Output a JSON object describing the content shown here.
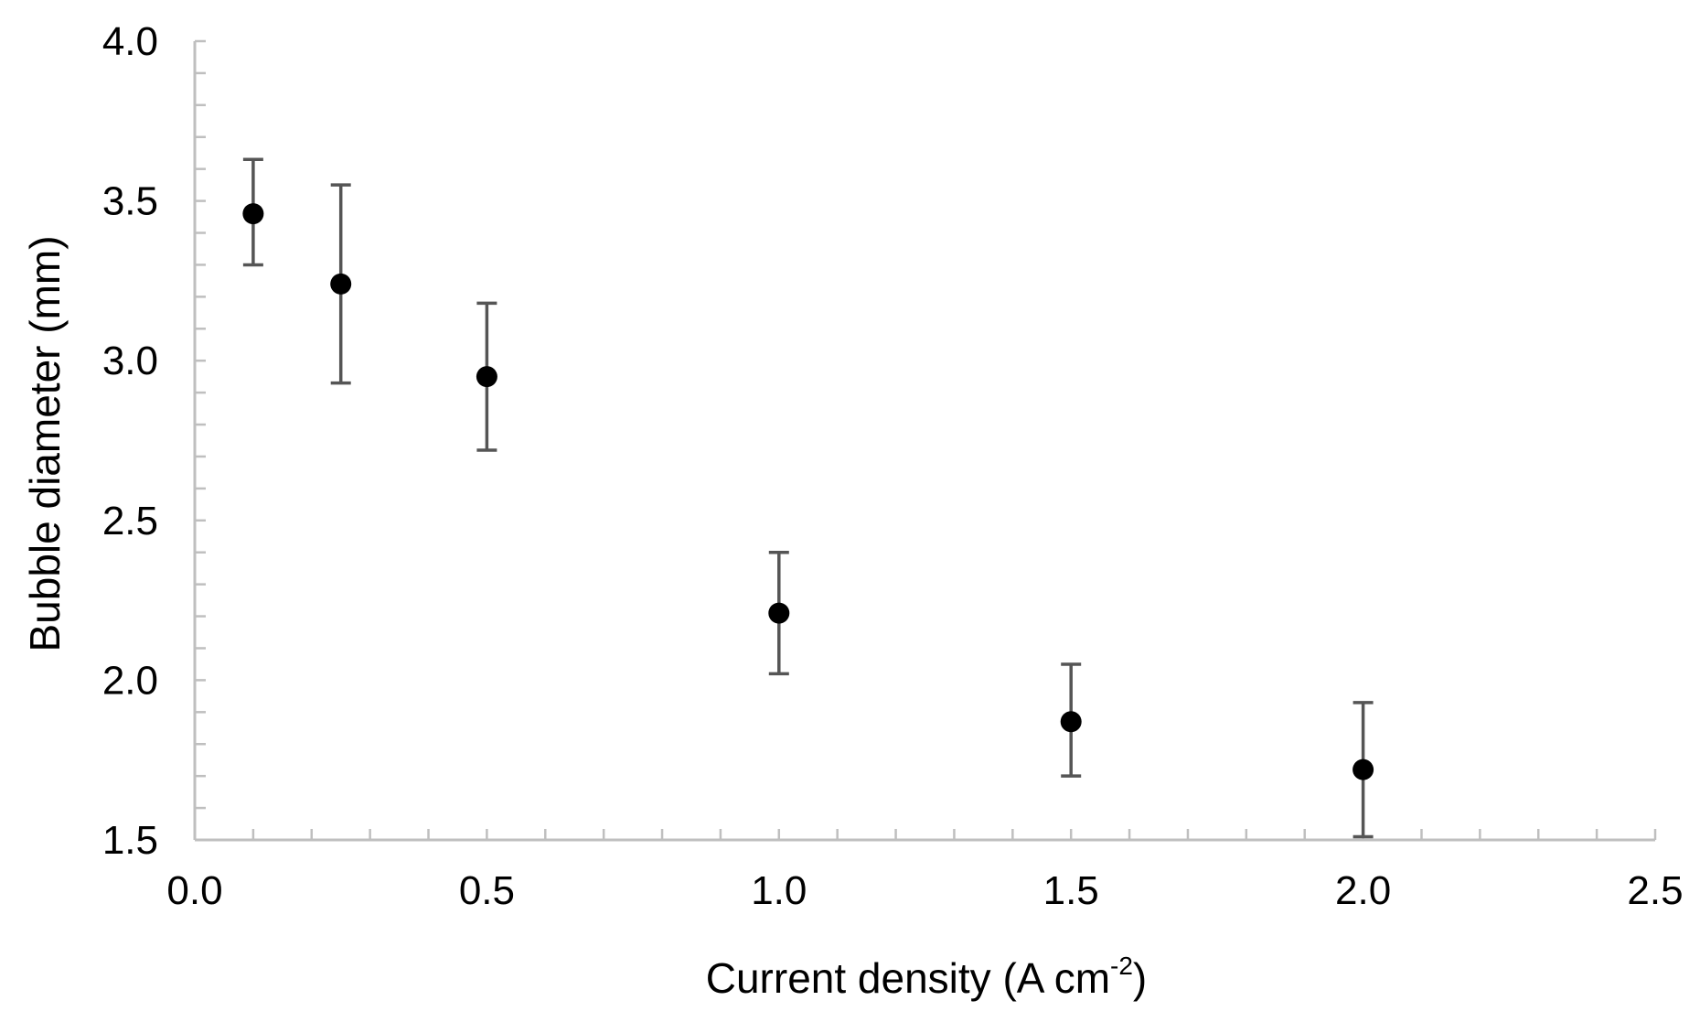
{
  "chart_data": {
    "type": "scatter",
    "title": "",
    "xlabel": "Current density (A cm",
    "xlabel_superscript": "-2",
    "xlabel_suffix": ")",
    "ylabel": "Bubble diameter (mm)",
    "xlim": [
      0.0,
      2.5
    ],
    "ylim": [
      1.5,
      4.0
    ],
    "x_ticks": [
      "0.0",
      "0.5",
      "1.0",
      "1.5",
      "2.0",
      "2.5"
    ],
    "y_ticks": [
      "1.5",
      "2.0",
      "2.5",
      "3.0",
      "3.5",
      "4.0"
    ],
    "x_minor_step": 0.1,
    "y_minor_step": 0.1,
    "grid": false,
    "legend": "none",
    "colors": {
      "marker": "#000000",
      "error_bar": "#555555",
      "axis": "#bfbfbf"
    },
    "series": [
      {
        "points": [
          {
            "x": 0.1,
            "y": 3.46,
            "ylow": 3.3,
            "yhigh": 3.63
          },
          {
            "x": 0.25,
            "y": 3.24,
            "ylow": 2.93,
            "yhigh": 3.55
          },
          {
            "x": 0.5,
            "y": 2.95,
            "ylow": 2.72,
            "yhigh": 3.18
          },
          {
            "x": 1.0,
            "y": 2.21,
            "ylow": 2.02,
            "yhigh": 2.4
          },
          {
            "x": 1.5,
            "y": 1.87,
            "ylow": 1.7,
            "yhigh": 2.05
          },
          {
            "x": 2.0,
            "y": 1.72,
            "ylow": 1.51,
            "yhigh": 1.93
          }
        ]
      }
    ]
  }
}
